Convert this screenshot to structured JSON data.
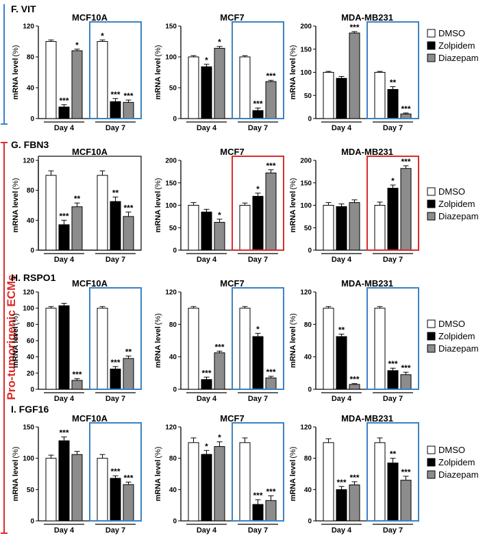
{
  "figure": {
    "side_label": "Pro-tumorigenic ECMs",
    "legend": [
      {
        "name": "DMSO",
        "fill": "#ffffff"
      },
      {
        "name": "Zolpidem",
        "fill": "#000000"
      },
      {
        "name": "Diazepam",
        "fill": "#8c8c8c"
      }
    ],
    "colors": {
      "blue": "#3a82c4",
      "red": "#d92b2b",
      "gray": "#8c8c8c",
      "black": "#000000"
    },
    "y_axis_label": "mRNA level",
    "y_axis_unit": "(%)"
  },
  "chart_data": [
    {
      "type": "bar",
      "row": "F",
      "panel_label": "F. VIT",
      "title": "MCF10A",
      "ylabel": "mRNA level (%)",
      "ylim": [
        0,
        120
      ],
      "yticks": [
        0,
        40,
        80,
        120
      ],
      "categories": [
        "Day 4",
        "Day 7"
      ],
      "series": [
        {
          "name": "DMSO",
          "values": [
            100,
            100
          ]
        },
        {
          "name": "Zolpidem",
          "values": [
            15,
            22
          ]
        },
        {
          "name": "Diazepam",
          "values": [
            88,
            21
          ]
        }
      ],
      "errors": [
        [
          2,
          2
        ],
        [
          3,
          4
        ],
        [
          2,
          3
        ]
      ],
      "significance": [
        [
          "",
          "*"
        ],
        [
          "***",
          "***"
        ],
        [
          "*",
          "***"
        ]
      ],
      "highlight": "Day 7",
      "highlight_color": "blue"
    },
    {
      "type": "bar",
      "row": "F",
      "title": "MCF7",
      "ylabel": "mRNA level (%)",
      "ylim": [
        0,
        150
      ],
      "yticks": [
        0,
        50,
        100,
        150
      ],
      "categories": [
        "Day 4",
        "Day 7"
      ],
      "series": [
        {
          "name": "DMSO",
          "values": [
            100,
            100
          ]
        },
        {
          "name": "Zolpidem",
          "values": [
            84,
            13
          ]
        },
        {
          "name": "Diazepam",
          "values": [
            114,
            60
          ]
        }
      ],
      "errors": [
        [
          2,
          2
        ],
        [
          4,
          4
        ],
        [
          3,
          2
        ]
      ],
      "significance": [
        [
          "",
          ""
        ],
        [
          "*",
          "***"
        ],
        [
          "*",
          "***"
        ]
      ],
      "highlight": "Day 7",
      "highlight_color": "blue"
    },
    {
      "type": "bar",
      "row": "F",
      "title": "MDA-MB231",
      "ylabel": "mRNA level (%)",
      "ylim": [
        0,
        200
      ],
      "yticks": [
        0,
        50,
        100,
        150,
        200
      ],
      "categories": [
        "Day 4",
        "Day 7"
      ],
      "series": [
        {
          "name": "DMSO",
          "values": [
            100,
            100
          ]
        },
        {
          "name": "Zolpidem",
          "values": [
            87,
            63
          ]
        },
        {
          "name": "Diazepam",
          "values": [
            185,
            10
          ]
        }
      ],
      "errors": [
        [
          2,
          2
        ],
        [
          4,
          6
        ],
        [
          3,
          2
        ]
      ],
      "significance": [
        [
          "",
          ""
        ],
        [
          "",
          "**"
        ],
        [
          "***",
          "***"
        ]
      ],
      "highlight": "Day 7",
      "highlight_color": "blue"
    },
    {
      "type": "bar",
      "row": "G",
      "panel_label": "G. FBN3",
      "title": "MCF10A",
      "ylabel": "mRNA level (%)",
      "ylim": [
        0,
        120
      ],
      "yticks": [
        0,
        40,
        80,
        120
      ],
      "categories": [
        "Day 4",
        "Day 7"
      ],
      "series": [
        {
          "name": "DMSO",
          "values": [
            100,
            100
          ]
        },
        {
          "name": "Zolpidem",
          "values": [
            34,
            65
          ]
        },
        {
          "name": "Diazepam",
          "values": [
            58,
            45
          ]
        }
      ],
      "errors": [
        [
          6,
          6
        ],
        [
          6,
          6
        ],
        [
          5,
          6
        ]
      ],
      "significance": [
        [
          "",
          ""
        ],
        [
          "***",
          "**"
        ],
        [
          "**",
          "***"
        ]
      ],
      "highlight": null
    },
    {
      "type": "bar",
      "row": "G",
      "title": "MCF7",
      "ylabel": "mRNA level (%)",
      "ylim": [
        0,
        200
      ],
      "yticks": [
        0,
        50,
        100,
        150,
        200
      ],
      "categories": [
        "Day 4",
        "Day 7"
      ],
      "series": [
        {
          "name": "DMSO",
          "values": [
            100,
            100
          ]
        },
        {
          "name": "Zolpidem",
          "values": [
            85,
            120
          ]
        },
        {
          "name": "Diazepam",
          "values": [
            62,
            172
          ]
        }
      ],
      "errors": [
        [
          6,
          5
        ],
        [
          6,
          7
        ],
        [
          7,
          7
        ]
      ],
      "significance": [
        [
          "",
          ""
        ],
        [
          "",
          "*"
        ],
        [
          "*",
          "***"
        ]
      ],
      "highlight": "Day 7",
      "highlight_color": "red"
    },
    {
      "type": "bar",
      "row": "G",
      "title": "MDA-MB231",
      "ylabel": "mRNA level (%)",
      "ylim": [
        0,
        200
      ],
      "yticks": [
        0,
        50,
        100,
        150,
        200
      ],
      "categories": [
        "Day 4",
        "Day 7"
      ],
      "series": [
        {
          "name": "DMSO",
          "values": [
            100,
            100
          ]
        },
        {
          "name": "Zolpidem",
          "values": [
            97,
            138
          ]
        },
        {
          "name": "Diazepam",
          "values": [
            106,
            182
          ]
        }
      ],
      "errors": [
        [
          6,
          7
        ],
        [
          6,
          7
        ],
        [
          6,
          6
        ]
      ],
      "significance": [
        [
          "",
          ""
        ],
        [
          "",
          "*"
        ],
        [
          "",
          "***"
        ]
      ],
      "highlight": "Day 7",
      "highlight_color": "red"
    },
    {
      "type": "bar",
      "row": "H",
      "panel_label": "H. RSPO1",
      "title": "MCF10A",
      "ylabel": "mRNA level (%)",
      "ylim": [
        0,
        120
      ],
      "yticks": [
        0,
        20,
        40,
        60,
        80,
        100,
        120
      ],
      "categories": [
        "Day 4",
        "Day 7"
      ],
      "series": [
        {
          "name": "DMSO",
          "values": [
            100,
            100
          ]
        },
        {
          "name": "Zolpidem",
          "values": [
            103,
            25
          ]
        },
        {
          "name": "Diazepam",
          "values": [
            11,
            38
          ]
        }
      ],
      "errors": [
        [
          2,
          2
        ],
        [
          3,
          3
        ],
        [
          2,
          3
        ]
      ],
      "significance": [
        [
          "",
          ""
        ],
        [
          "",
          "***"
        ],
        [
          "***",
          "**"
        ]
      ],
      "highlight": "Day 7",
      "highlight_color": "blue"
    },
    {
      "type": "bar",
      "row": "H",
      "title": "MCF7",
      "ylabel": "mRNA level (%)",
      "ylim": [
        0,
        120
      ],
      "yticks": [
        0,
        40,
        80,
        120
      ],
      "categories": [
        "Day 4",
        "Day 7"
      ],
      "series": [
        {
          "name": "DMSO",
          "values": [
            100,
            100
          ]
        },
        {
          "name": "Zolpidem",
          "values": [
            12,
            65
          ]
        },
        {
          "name": "Diazepam",
          "values": [
            45,
            14
          ]
        }
      ],
      "errors": [
        [
          2,
          2
        ],
        [
          3,
          4
        ],
        [
          2,
          2
        ]
      ],
      "significance": [
        [
          "",
          ""
        ],
        [
          "***",
          "*"
        ],
        [
          "***",
          "***"
        ]
      ],
      "highlight": "Day 7",
      "highlight_color": "blue"
    },
    {
      "type": "bar",
      "row": "H",
      "title": "MDA-MB231",
      "ylabel": "mRNA level (%)",
      "ylim": [
        0,
        120
      ],
      "yticks": [
        0,
        40,
        80,
        120
      ],
      "categories": [
        "Day 4",
        "Day 7"
      ],
      "series": [
        {
          "name": "DMSO",
          "values": [
            100,
            100
          ]
        },
        {
          "name": "Zolpidem",
          "values": [
            65,
            23
          ]
        },
        {
          "name": "Diazepam",
          "values": [
            6,
            18
          ]
        }
      ],
      "errors": [
        [
          2,
          2
        ],
        [
          3,
          3
        ],
        [
          1,
          3
        ]
      ],
      "significance": [
        [
          "",
          ""
        ],
        [
          "**",
          "***"
        ],
        [
          "***",
          "***"
        ]
      ],
      "highlight": "Day 7",
      "highlight_color": "blue"
    },
    {
      "type": "bar",
      "row": "I",
      "panel_label": "I. FGF16",
      "title": "MCF10A",
      "ylabel": "mRNA level (%)",
      "ylim": [
        0,
        150
      ],
      "yticks": [
        0,
        50,
        100,
        150
      ],
      "categories": [
        "Day 4",
        "Day 7"
      ],
      "series": [
        {
          "name": "DMSO",
          "values": [
            100,
            100
          ]
        },
        {
          "name": "Zolpidem",
          "values": [
            128,
            68
          ]
        },
        {
          "name": "Diazepam",
          "values": [
            106,
            58
          ]
        }
      ],
      "errors": [
        [
          5,
          6
        ],
        [
          6,
          4
        ],
        [
          5,
          4
        ]
      ],
      "significance": [
        [
          "",
          ""
        ],
        [
          "***",
          "***"
        ],
        [
          "",
          "***"
        ]
      ],
      "highlight": "Day 7",
      "highlight_color": "blue"
    },
    {
      "type": "bar",
      "row": "I",
      "title": "MCF7",
      "ylabel": "mRNA level (%)",
      "ylim": [
        0,
        120
      ],
      "yticks": [
        0,
        40,
        80,
        120
      ],
      "categories": [
        "Day 4",
        "Day 7"
      ],
      "series": [
        {
          "name": "DMSO",
          "values": [
            100,
            100
          ]
        },
        {
          "name": "Zolpidem",
          "values": [
            85,
            21
          ]
        },
        {
          "name": "Diazepam",
          "values": [
            95,
            26
          ]
        }
      ],
      "errors": [
        [
          6,
          6
        ],
        [
          5,
          6
        ],
        [
          6,
          6
        ]
      ],
      "significance": [
        [
          "",
          ""
        ],
        [
          "*",
          "***"
        ],
        [
          "*",
          "***"
        ]
      ],
      "highlight": "Day 7",
      "highlight_color": "blue"
    },
    {
      "type": "bar",
      "row": "I",
      "title": "MDA-MB231",
      "ylabel": "mRNA level (%)",
      "ylim": [
        0,
        120
      ],
      "yticks": [
        0,
        40,
        80,
        120
      ],
      "categories": [
        "Day 4",
        "Day 7"
      ],
      "series": [
        {
          "name": "DMSO",
          "values": [
            100,
            100
          ]
        },
        {
          "name": "Zolpidem",
          "values": [
            40,
            74
          ]
        },
        {
          "name": "Diazepam",
          "values": [
            46,
            52
          ]
        }
      ],
      "errors": [
        [
          5,
          6
        ],
        [
          4,
          6
        ],
        [
          4,
          5
        ]
      ],
      "significance": [
        [
          "",
          ""
        ],
        [
          "***",
          "**"
        ],
        [
          "***",
          "***"
        ]
      ],
      "highlight": "Day 7",
      "highlight_color": "blue"
    }
  ]
}
